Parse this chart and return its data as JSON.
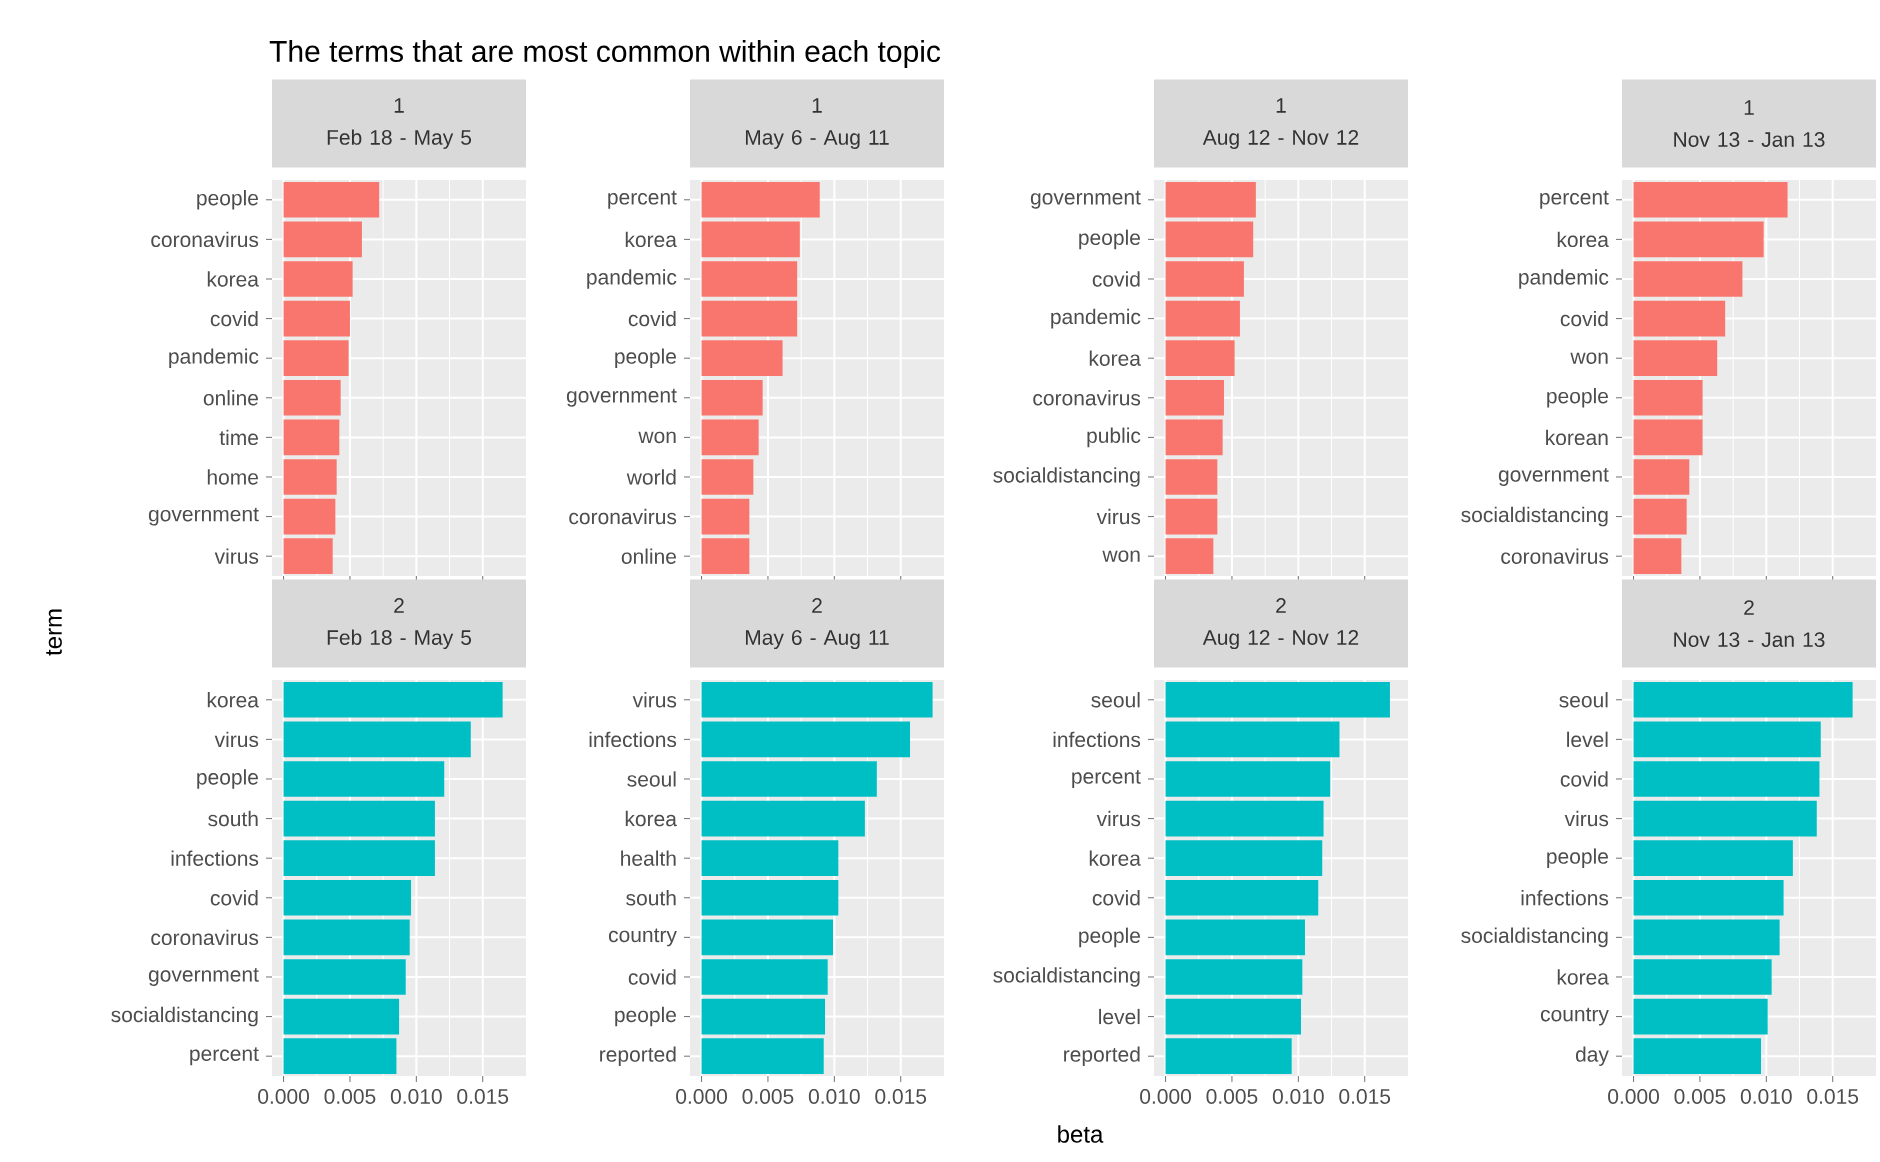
{
  "chart_data": [
    {
      "type": "bar",
      "orientation": "horizontal",
      "title": "1",
      "subtitle": "Feb 18 - May 5",
      "annotations": [
        "The terms that are most common within each topic"
      ],
      "categories": [
        "people",
        "coronavirus",
        "korea",
        "covid",
        "pandemic",
        "online",
        "time",
        "home",
        "government",
        "virus"
      ],
      "values": [
        0.0072,
        0.0059,
        0.0052,
        0.005,
        0.0049,
        0.0043,
        0.0042,
        0.004,
        0.0039,
        0.0037
      ],
      "color": "#f8766d",
      "xlim": [
        -0.00087,
        0.01826
      ],
      "xticks": [
        0,
        0.005,
        0.01,
        0.015
      ],
      "grid": true,
      "tick_labels": "y"
    },
    {
      "type": "bar",
      "orientation": "horizontal",
      "title": "1",
      "subtitle": "May 6 - Aug 11",
      "categories": [
        "percent",
        "korea",
        "pandemic",
        "covid",
        "people",
        "government",
        "won",
        "world",
        "coronavirus",
        "online"
      ],
      "values": [
        0.0089,
        0.0074,
        0.0072,
        0.0072,
        0.0061,
        0.0046,
        0.0043,
        0.0039,
        0.0036,
        0.0036
      ],
      "color": "#f8766d",
      "xlim": [
        -0.00087,
        0.01826
      ],
      "xticks": [
        0,
        0.005,
        0.01,
        0.015
      ],
      "grid": true,
      "tick_labels": "y"
    },
    {
      "type": "bar",
      "orientation": "horizontal",
      "title": "1",
      "subtitle": "Aug 12 - Nov 12",
      "categories": [
        "government",
        "people",
        "covid",
        "pandemic",
        "korea",
        "coronavirus",
        "public",
        "socialdistancing",
        "virus",
        "won"
      ],
      "values": [
        0.0068,
        0.0066,
        0.0059,
        0.0056,
        0.0052,
        0.0044,
        0.0043,
        0.0039,
        0.0039,
        0.0036
      ],
      "color": "#f8766d",
      "xlim": [
        -0.00087,
        0.01826
      ],
      "xticks": [
        0,
        0.005,
        0.01,
        0.015
      ],
      "grid": true,
      "tick_labels": "y"
    },
    {
      "type": "bar",
      "orientation": "horizontal",
      "title": "1",
      "subtitle": "Nov 13 - Jan 13",
      "categories": [
        "percent",
        "korea",
        "pandemic",
        "covid",
        "won",
        "people",
        "korean",
        "government",
        "socialdistancing",
        "coronavirus"
      ],
      "values": [
        0.0116,
        0.0098,
        0.0082,
        0.0069,
        0.0063,
        0.0052,
        0.0052,
        0.0042,
        0.004,
        0.0036
      ],
      "color": "#f8766d",
      "xlim": [
        -0.00087,
        0.01826
      ],
      "xticks": [
        0,
        0.005,
        0.01,
        0.015
      ],
      "grid": true,
      "tick_labels": "y"
    },
    {
      "type": "bar",
      "orientation": "horizontal",
      "title": "2",
      "subtitle": "Feb 18 - May 5",
      "ylabel": "term",
      "categories": [
        "korea",
        "virus",
        "people",
        "south",
        "infections",
        "covid",
        "coronavirus",
        "government",
        "socialdistancing",
        "percent"
      ],
      "values": [
        0.0165,
        0.0141,
        0.0121,
        0.0114,
        0.0114,
        0.0096,
        0.0095,
        0.0092,
        0.0087,
        0.0085
      ],
      "color": "#00bfc4",
      "xlim": [
        -0.00087,
        0.01826
      ],
      "xticks": [
        {
          "value": 0,
          "label": "0.000"
        },
        {
          "value": 0.005,
          "label": "0.005"
        },
        {
          "value": 0.01,
          "label": "0.010"
        },
        {
          "value": 0.015,
          "label": "0.015"
        }
      ],
      "grid": true
    },
    {
      "type": "bar",
      "orientation": "horizontal",
      "title": "2",
      "subtitle": "May 6 - Aug 11",
      "categories": [
        "virus",
        "infections",
        "seoul",
        "korea",
        "health",
        "south",
        "country",
        "covid",
        "people",
        "reported"
      ],
      "values": [
        0.0174,
        0.0157,
        0.0132,
        0.0123,
        0.0103,
        0.0103,
        0.0099,
        0.0095,
        0.0093,
        0.0092
      ],
      "color": "#00bfc4",
      "xlim": [
        -0.00087,
        0.01826
      ],
      "xticks": [
        {
          "value": 0,
          "label": "0.000"
        },
        {
          "value": 0.005,
          "label": "0.005"
        },
        {
          "value": 0.01,
          "label": "0.010"
        },
        {
          "value": 0.015,
          "label": "0.015"
        }
      ],
      "grid": true
    },
    {
      "type": "bar",
      "orientation": "horizontal",
      "title": "2",
      "subtitle": "Aug 12 - Nov 12",
      "xlabel": "beta",
      "categories": [
        "seoul",
        "infections",
        "percent",
        "virus",
        "korea",
        "covid",
        "people",
        "socialdistancing",
        "level",
        "reported"
      ],
      "values": [
        0.0169,
        0.0131,
        0.0124,
        0.0119,
        0.0118,
        0.0115,
        0.0105,
        0.0103,
        0.0102,
        0.0095
      ],
      "color": "#00bfc4",
      "xlim": [
        -0.00087,
        0.01826
      ],
      "xticks": [
        {
          "value": 0,
          "label": "0.000"
        },
        {
          "value": 0.005,
          "label": "0.005"
        },
        {
          "value": 0.01,
          "label": "0.010"
        },
        {
          "value": 0.015,
          "label": "0.015"
        }
      ],
      "grid": true
    },
    {
      "type": "bar",
      "orientation": "horizontal",
      "title": "2",
      "subtitle": "Nov 13 - Jan 13",
      "categories": [
        "seoul",
        "level",
        "covid",
        "virus",
        "people",
        "infections",
        "socialdistancing",
        "korea",
        "country",
        "day"
      ],
      "values": [
        0.0165,
        0.0141,
        0.014,
        0.0138,
        0.012,
        0.0113,
        0.011,
        0.0104,
        0.0101,
        0.0096
      ],
      "color": "#00bfc4",
      "xlim": [
        -0.00087,
        0.01826
      ],
      "xticks": [
        {
          "value": 0,
          "label": "0.000"
        },
        {
          "value": 0.005,
          "label": "0.005"
        },
        {
          "value": 0.01,
          "label": "0.010"
        },
        {
          "value": 0.015,
          "label": "0.015"
        }
      ],
      "grid": true
    }
  ]
}
